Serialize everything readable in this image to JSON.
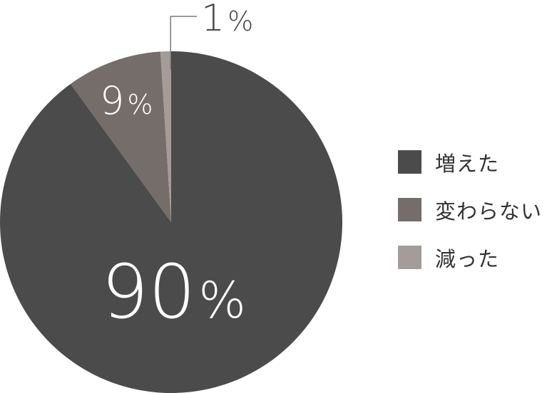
{
  "chart_data": {
    "type": "pie",
    "start": "top",
    "direction": "clockwise",
    "slices": [
      {
        "label": "増えた",
        "value": 90,
        "data_label": "90",
        "color": "#4b4b4b"
      },
      {
        "label": "変わらない",
        "value": 9,
        "data_label": "9",
        "color": "#756d6a"
      },
      {
        "label": "減った",
        "value": 1,
        "data_label": "1",
        "color": "#a39c99"
      }
    ],
    "percent_sign": "%",
    "legend_position": "right"
  }
}
